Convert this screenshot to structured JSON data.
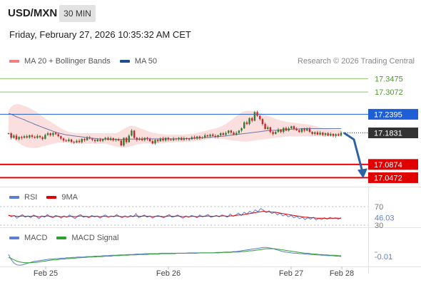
{
  "header": {
    "symbol": "USD/MXN",
    "interval": "30 MIN",
    "datetime": "Friday, February 27, 2026 10:35:32 AM CET",
    "copyright": "Research © 2026 Trading Central"
  },
  "legend": {
    "main": [
      {
        "label": "MA 20 + Bollinger Bands",
        "color": "#f08080"
      },
      {
        "label": "MA 50",
        "color": "#1f4e8c"
      }
    ],
    "rsi": [
      {
        "label": "RSI",
        "color": "#5b7fd4"
      },
      {
        "label": "9MA",
        "color": "#e00000"
      }
    ],
    "macd": [
      {
        "label": "MACD",
        "color": "#5b7fd4"
      },
      {
        "label": "MACD Signal",
        "color": "#2ea02e"
      }
    ]
  },
  "colors": {
    "resistance_green": "#8dc56a",
    "pivot_blue": "#1f5fd6",
    "support_red": "#e00000",
    "current_dark": "#333333",
    "candle_up": "#2e7d32",
    "candle_down": "#c62828",
    "band_fill": "#fbdede",
    "forecast_arrow": "#2c62a8"
  },
  "chart_data": [
    {
      "type": "candlestick",
      "title": "USD/MXN",
      "ylim": [
        17.02,
        17.37
      ],
      "x_ticks": [
        "Feb 25",
        "Feb 26",
        "Feb 27",
        "Feb 28"
      ],
      "levels": [
        {
          "value": 17.3475,
          "label": "17.3475",
          "kind": "resistance"
        },
        {
          "value": 17.3072,
          "label": "17.3072",
          "kind": "resistance"
        },
        {
          "value": 17.2395,
          "label": "17.2395",
          "kind": "pivot"
        },
        {
          "value": 17.1831,
          "label": "17.1831",
          "kind": "last"
        },
        {
          "value": 17.0874,
          "label": "17.0874",
          "kind": "support"
        },
        {
          "value": 17.0472,
          "label": "17.0472",
          "kind": "support"
        }
      ],
      "close": [
        17.182,
        17.168,
        17.175,
        17.164,
        17.171,
        17.168,
        17.173,
        17.169,
        17.176,
        17.171,
        17.168,
        17.174,
        17.17,
        17.165,
        17.177,
        17.182,
        17.176,
        17.183,
        17.179,
        17.173,
        17.166,
        17.16,
        17.158,
        17.163,
        17.156,
        17.154,
        17.159,
        17.155,
        17.165,
        17.161,
        17.169,
        17.166,
        17.162,
        17.158,
        17.163,
        17.159,
        17.164,
        17.168,
        17.162,
        17.167,
        17.161,
        17.164,
        17.16,
        17.145,
        17.168,
        17.155,
        17.175,
        17.19,
        17.168,
        17.162,
        17.166,
        17.161,
        17.168,
        17.165,
        17.158,
        17.151,
        17.162,
        17.158,
        17.166,
        17.16,
        17.168,
        17.163,
        17.161,
        17.166,
        17.164,
        17.168,
        17.162,
        17.167,
        17.165,
        17.164,
        17.17,
        17.166,
        17.172,
        17.167,
        17.169,
        17.176,
        17.173,
        17.178,
        17.174,
        17.171,
        17.176,
        17.182,
        17.177,
        17.183,
        17.19,
        17.184,
        17.178,
        17.183,
        17.19,
        17.197,
        17.215,
        17.21,
        17.228,
        17.22,
        17.246,
        17.235,
        17.225,
        17.21,
        17.195,
        17.2,
        17.186,
        17.18,
        17.186,
        17.193,
        17.186,
        17.198,
        17.19,
        17.197,
        17.203,
        17.196,
        17.191,
        17.186,
        17.196,
        17.19,
        17.196,
        17.186,
        17.18,
        17.185,
        17.178,
        17.184,
        17.177,
        17.182,
        17.175,
        17.18,
        17.174,
        17.179,
        17.175,
        17.183
      ],
      "ma50": [
        17.242,
        17.24,
        17.236,
        17.232,
        17.229,
        17.226,
        17.223,
        17.219,
        17.216,
        17.213,
        17.209,
        17.206,
        17.203,
        17.2,
        17.197,
        17.194,
        17.191,
        17.188,
        17.185,
        17.183,
        17.181,
        17.179,
        17.177,
        17.176,
        17.175,
        17.174,
        17.173,
        17.172,
        17.171,
        17.17,
        17.169,
        17.168,
        17.167,
        17.166,
        17.165,
        17.165,
        17.164,
        17.164,
        17.164,
        17.163,
        17.163,
        17.163,
        17.163,
        17.163,
        17.163,
        17.163,
        17.164,
        17.164,
        17.164,
        17.164,
        17.164,
        17.164,
        17.165,
        17.165,
        17.165,
        17.165,
        17.165,
        17.165,
        17.165,
        17.165,
        17.165,
        17.165,
        17.165,
        17.165,
        17.165,
        17.165,
        17.165,
        17.165,
        17.166,
        17.166,
        17.166,
        17.167,
        17.167,
        17.168,
        17.168,
        17.169,
        17.169,
        17.17,
        17.171,
        17.171,
        17.172,
        17.173,
        17.173,
        17.174,
        17.175,
        17.176,
        17.177,
        17.178,
        17.179,
        17.18,
        17.181,
        17.182,
        17.183,
        17.184,
        17.185,
        17.186,
        17.187,
        17.188,
        17.189,
        17.19,
        17.19,
        17.191,
        17.191,
        17.192,
        17.192,
        17.193,
        17.193,
        17.194,
        17.194,
        17.195,
        17.195,
        17.195,
        17.196,
        17.196,
        17.196,
        17.196,
        17.196,
        17.196,
        17.196,
        17.196,
        17.196,
        17.196,
        17.196,
        17.196,
        17.196,
        17.196,
        17.196,
        17.196
      ],
      "bb_upper": [
        17.252,
        17.262,
        17.268,
        17.27,
        17.27,
        17.268,
        17.265,
        17.262,
        17.258,
        17.254,
        17.25,
        17.245,
        17.239,
        17.233,
        17.227,
        17.222,
        17.217,
        17.212,
        17.207,
        17.202,
        17.197,
        17.193,
        17.189,
        17.186,
        17.184,
        17.183,
        17.182,
        17.182,
        17.182,
        17.182,
        17.182,
        17.182,
        17.182,
        17.182,
        17.182,
        17.182,
        17.182,
        17.182,
        17.182,
        17.182,
        17.182,
        17.182,
        17.185,
        17.19,
        17.195,
        17.2,
        17.203,
        17.204,
        17.203,
        17.201,
        17.198,
        17.195,
        17.192,
        17.189,
        17.186,
        17.184,
        17.182,
        17.181,
        17.18,
        17.179,
        17.178,
        17.178,
        17.178,
        17.178,
        17.178,
        17.178,
        17.178,
        17.178,
        17.179,
        17.179,
        17.18,
        17.181,
        17.183,
        17.185,
        17.187,
        17.189,
        17.191,
        17.193,
        17.195,
        17.197,
        17.199,
        17.202,
        17.206,
        17.21,
        17.216,
        17.222,
        17.228,
        17.234,
        17.24,
        17.245,
        17.248,
        17.25,
        17.25,
        17.249,
        17.248,
        17.246,
        17.244,
        17.241,
        17.238,
        17.235,
        17.232,
        17.229,
        17.226,
        17.223,
        17.221,
        17.219,
        17.217,
        17.216,
        17.215,
        17.214,
        17.213,
        17.212,
        17.211,
        17.21,
        17.209,
        17.208,
        17.206,
        17.204,
        17.202,
        17.2,
        17.198,
        17.196,
        17.195,
        17.194,
        17.193,
        17.193,
        17.193,
        17.193
      ],
      "bb_lower": [
        17.182,
        17.172,
        17.165,
        17.158,
        17.152,
        17.147,
        17.143,
        17.14,
        17.138,
        17.137,
        17.137,
        17.138,
        17.14,
        17.142,
        17.144,
        17.146,
        17.148,
        17.15,
        17.152,
        17.153,
        17.154,
        17.154,
        17.154,
        17.153,
        17.152,
        17.151,
        17.15,
        17.15,
        17.15,
        17.15,
        17.15,
        17.15,
        17.15,
        17.15,
        17.15,
        17.15,
        17.15,
        17.15,
        17.148,
        17.146,
        17.144,
        17.142,
        17.14,
        17.139,
        17.139,
        17.14,
        17.141,
        17.143,
        17.145,
        17.147,
        17.149,
        17.15,
        17.151,
        17.151,
        17.151,
        17.151,
        17.151,
        17.151,
        17.152,
        17.152,
        17.153,
        17.153,
        17.154,
        17.154,
        17.155,
        17.155,
        17.155,
        17.156,
        17.156,
        17.156,
        17.157,
        17.158,
        17.159,
        17.16,
        17.161,
        17.162,
        17.163,
        17.164,
        17.165,
        17.165,
        17.165,
        17.165,
        17.164,
        17.163,
        17.162,
        17.161,
        17.16,
        17.159,
        17.158,
        17.157,
        17.157,
        17.157,
        17.158,
        17.159,
        17.16,
        17.161,
        17.162,
        17.163,
        17.164,
        17.165,
        17.166,
        17.167,
        17.168,
        17.169,
        17.17,
        17.171,
        17.172,
        17.173,
        17.173,
        17.173,
        17.173,
        17.173,
        17.173,
        17.173,
        17.173,
        17.173,
        17.173,
        17.173,
        17.173,
        17.173,
        17.173,
        17.173,
        17.173,
        17.173,
        17.173,
        17.173,
        17.173,
        17.173
      ],
      "forecast": {
        "from": 17.1831,
        "to": 17.0472
      }
    },
    {
      "type": "line",
      "title": "RSI",
      "levels": [
        {
          "value": 70,
          "label": "70"
        },
        {
          "value": 46.03,
          "label": "46.03"
        },
        {
          "value": 30,
          "label": "30"
        }
      ],
      "series": [
        {
          "name": "RSI",
          "values": [
            52,
            48,
            51,
            45,
            49,
            53,
            47,
            50,
            46,
            52,
            49,
            44,
            50,
            47,
            53,
            48,
            46,
            51,
            49,
            45,
            50,
            47,
            52,
            48,
            44,
            50,
            53,
            47,
            49,
            46,
            51,
            48,
            50,
            45,
            49,
            52,
            47,
            50,
            48,
            53,
            49,
            46,
            50,
            47,
            51,
            48,
            55,
            46,
            49,
            52,
            47,
            50,
            45,
            49,
            51,
            48,
            46,
            50,
            53,
            47,
            49,
            52,
            48,
            45,
            50,
            47,
            51,
            49,
            46,
            52,
            48,
            50,
            53,
            47,
            49,
            51,
            48,
            52,
            50,
            47,
            54,
            49,
            52,
            56,
            51,
            58,
            54,
            60,
            56,
            63,
            59,
            66,
            62,
            57,
            61,
            55,
            58,
            52,
            56,
            50,
            53,
            48,
            51,
            46,
            49,
            44,
            47,
            42,
            46,
            43,
            47,
            41,
            45,
            42,
            46,
            43,
            47,
            44,
            46,
            43,
            46.03
          ]
        },
        {
          "name": "9MA",
          "values": [
            51,
            50,
            50,
            49,
            49,
            50,
            49,
            49,
            49,
            50,
            49,
            48,
            49,
            49,
            50,
            49,
            48,
            49,
            49,
            48,
            49,
            48,
            49,
            49,
            48,
            49,
            50,
            49,
            49,
            48,
            49,
            49,
            49,
            48,
            49,
            49,
            48,
            49,
            49,
            50,
            49,
            48,
            49,
            48,
            49,
            49,
            50,
            49,
            49,
            50,
            49,
            49,
            48,
            49,
            49,
            49,
            48,
            49,
            50,
            49,
            49,
            50,
            49,
            48,
            49,
            48,
            49,
            49,
            48,
            49,
            49,
            49,
            50,
            49,
            49,
            50,
            49,
            50,
            50,
            49,
            50,
            50,
            51,
            52,
            52,
            53,
            54,
            55,
            56,
            57,
            58,
            59,
            60,
            59,
            59,
            58,
            58,
            57,
            56,
            55,
            54,
            53,
            52,
            51,
            50,
            49,
            48,
            47,
            47,
            46,
            46,
            45,
            45,
            45,
            45,
            44,
            45,
            45,
            45,
            45,
            45
          ]
        }
      ]
    },
    {
      "type": "line",
      "title": "MACD",
      "levels": [
        {
          "value": -0.01,
          "label": "-0.01"
        }
      ],
      "series": [
        {
          "name": "MACD",
          "values": [
            -0.005,
            -0.018,
            -0.026,
            -0.03,
            -0.031,
            -0.03,
            -0.028,
            -0.026,
            -0.024,
            -0.022,
            -0.021,
            -0.02,
            -0.019,
            -0.018,
            -0.017,
            -0.016,
            -0.016,
            -0.015,
            -0.015,
            -0.014,
            -0.014,
            -0.013,
            -0.013,
            -0.012,
            -0.012,
            -0.011,
            -0.011,
            -0.011,
            -0.01,
            -0.01,
            -0.01,
            -0.009,
            -0.009,
            -0.009,
            -0.008,
            -0.008,
            -0.008,
            -0.007,
            -0.007,
            -0.007,
            -0.006,
            -0.006,
            -0.006,
            -0.005,
            -0.005,
            -0.005,
            -0.004,
            -0.004,
            -0.004,
            -0.003,
            -0.003,
            -0.003,
            -0.003,
            -0.003,
            -0.003,
            -0.002,
            -0.002,
            -0.002,
            -0.002,
            -0.002,
            -0.002,
            -0.002,
            -0.002,
            -0.002,
            -0.002,
            -0.001,
            -0.001,
            -0.001,
            -0.001,
            -0.001,
            -0.001,
            -0.001,
            -0.001,
            -0.001,
            -0.001,
            0.0,
            0.0,
            0.0,
            0.001,
            0.001,
            0.001,
            0.002,
            0.002,
            0.003,
            0.004,
            0.005,
            0.006,
            0.007,
            0.008,
            0.009,
            0.01,
            0.011,
            0.012,
            0.012,
            0.011,
            0.01,
            0.008,
            0.006,
            0.004,
            0.002,
            0.001,
            0.0,
            -0.001,
            -0.002,
            -0.002,
            -0.003,
            -0.003,
            -0.004,
            -0.004,
            -0.005,
            -0.005,
            -0.006,
            -0.006,
            -0.007,
            -0.007,
            -0.008,
            -0.008,
            -0.008,
            -0.009,
            -0.009,
            -0.01
          ]
        },
        {
          "name": "MACD Signal",
          "values": [
            -0.012,
            -0.015,
            -0.018,
            -0.021,
            -0.023,
            -0.024,
            -0.025,
            -0.025,
            -0.025,
            -0.024,
            -0.024,
            -0.023,
            -0.022,
            -0.021,
            -0.02,
            -0.019,
            -0.018,
            -0.018,
            -0.017,
            -0.016,
            -0.016,
            -0.015,
            -0.015,
            -0.014,
            -0.014,
            -0.013,
            -0.013,
            -0.012,
            -0.012,
            -0.011,
            -0.011,
            -0.011,
            -0.01,
            -0.01,
            -0.01,
            -0.009,
            -0.009,
            -0.009,
            -0.008,
            -0.008,
            -0.008,
            -0.007,
            -0.007,
            -0.007,
            -0.006,
            -0.006,
            -0.006,
            -0.005,
            -0.005,
            -0.005,
            -0.005,
            -0.004,
            -0.004,
            -0.004,
            -0.004,
            -0.003,
            -0.003,
            -0.003,
            -0.003,
            -0.003,
            -0.003,
            -0.002,
            -0.002,
            -0.002,
            -0.002,
            -0.002,
            -0.002,
            -0.002,
            -0.002,
            -0.001,
            -0.001,
            -0.001,
            -0.001,
            -0.001,
            -0.001,
            -0.001,
            -0.001,
            0.0,
            0.0,
            0.0,
            0.0,
            0.001,
            0.001,
            0.001,
            0.002,
            0.002,
            0.003,
            0.004,
            0.004,
            0.005,
            0.006,
            0.007,
            0.008,
            0.009,
            0.009,
            0.009,
            0.009,
            0.008,
            0.007,
            0.006,
            0.005,
            0.004,
            0.003,
            0.002,
            0.001,
            0.0,
            -0.001,
            -0.002,
            -0.002,
            -0.003,
            -0.004,
            -0.004,
            -0.005,
            -0.005,
            -0.006,
            -0.006,
            -0.007,
            -0.007,
            -0.007,
            -0.008,
            -0.008
          ]
        }
      ]
    }
  ]
}
